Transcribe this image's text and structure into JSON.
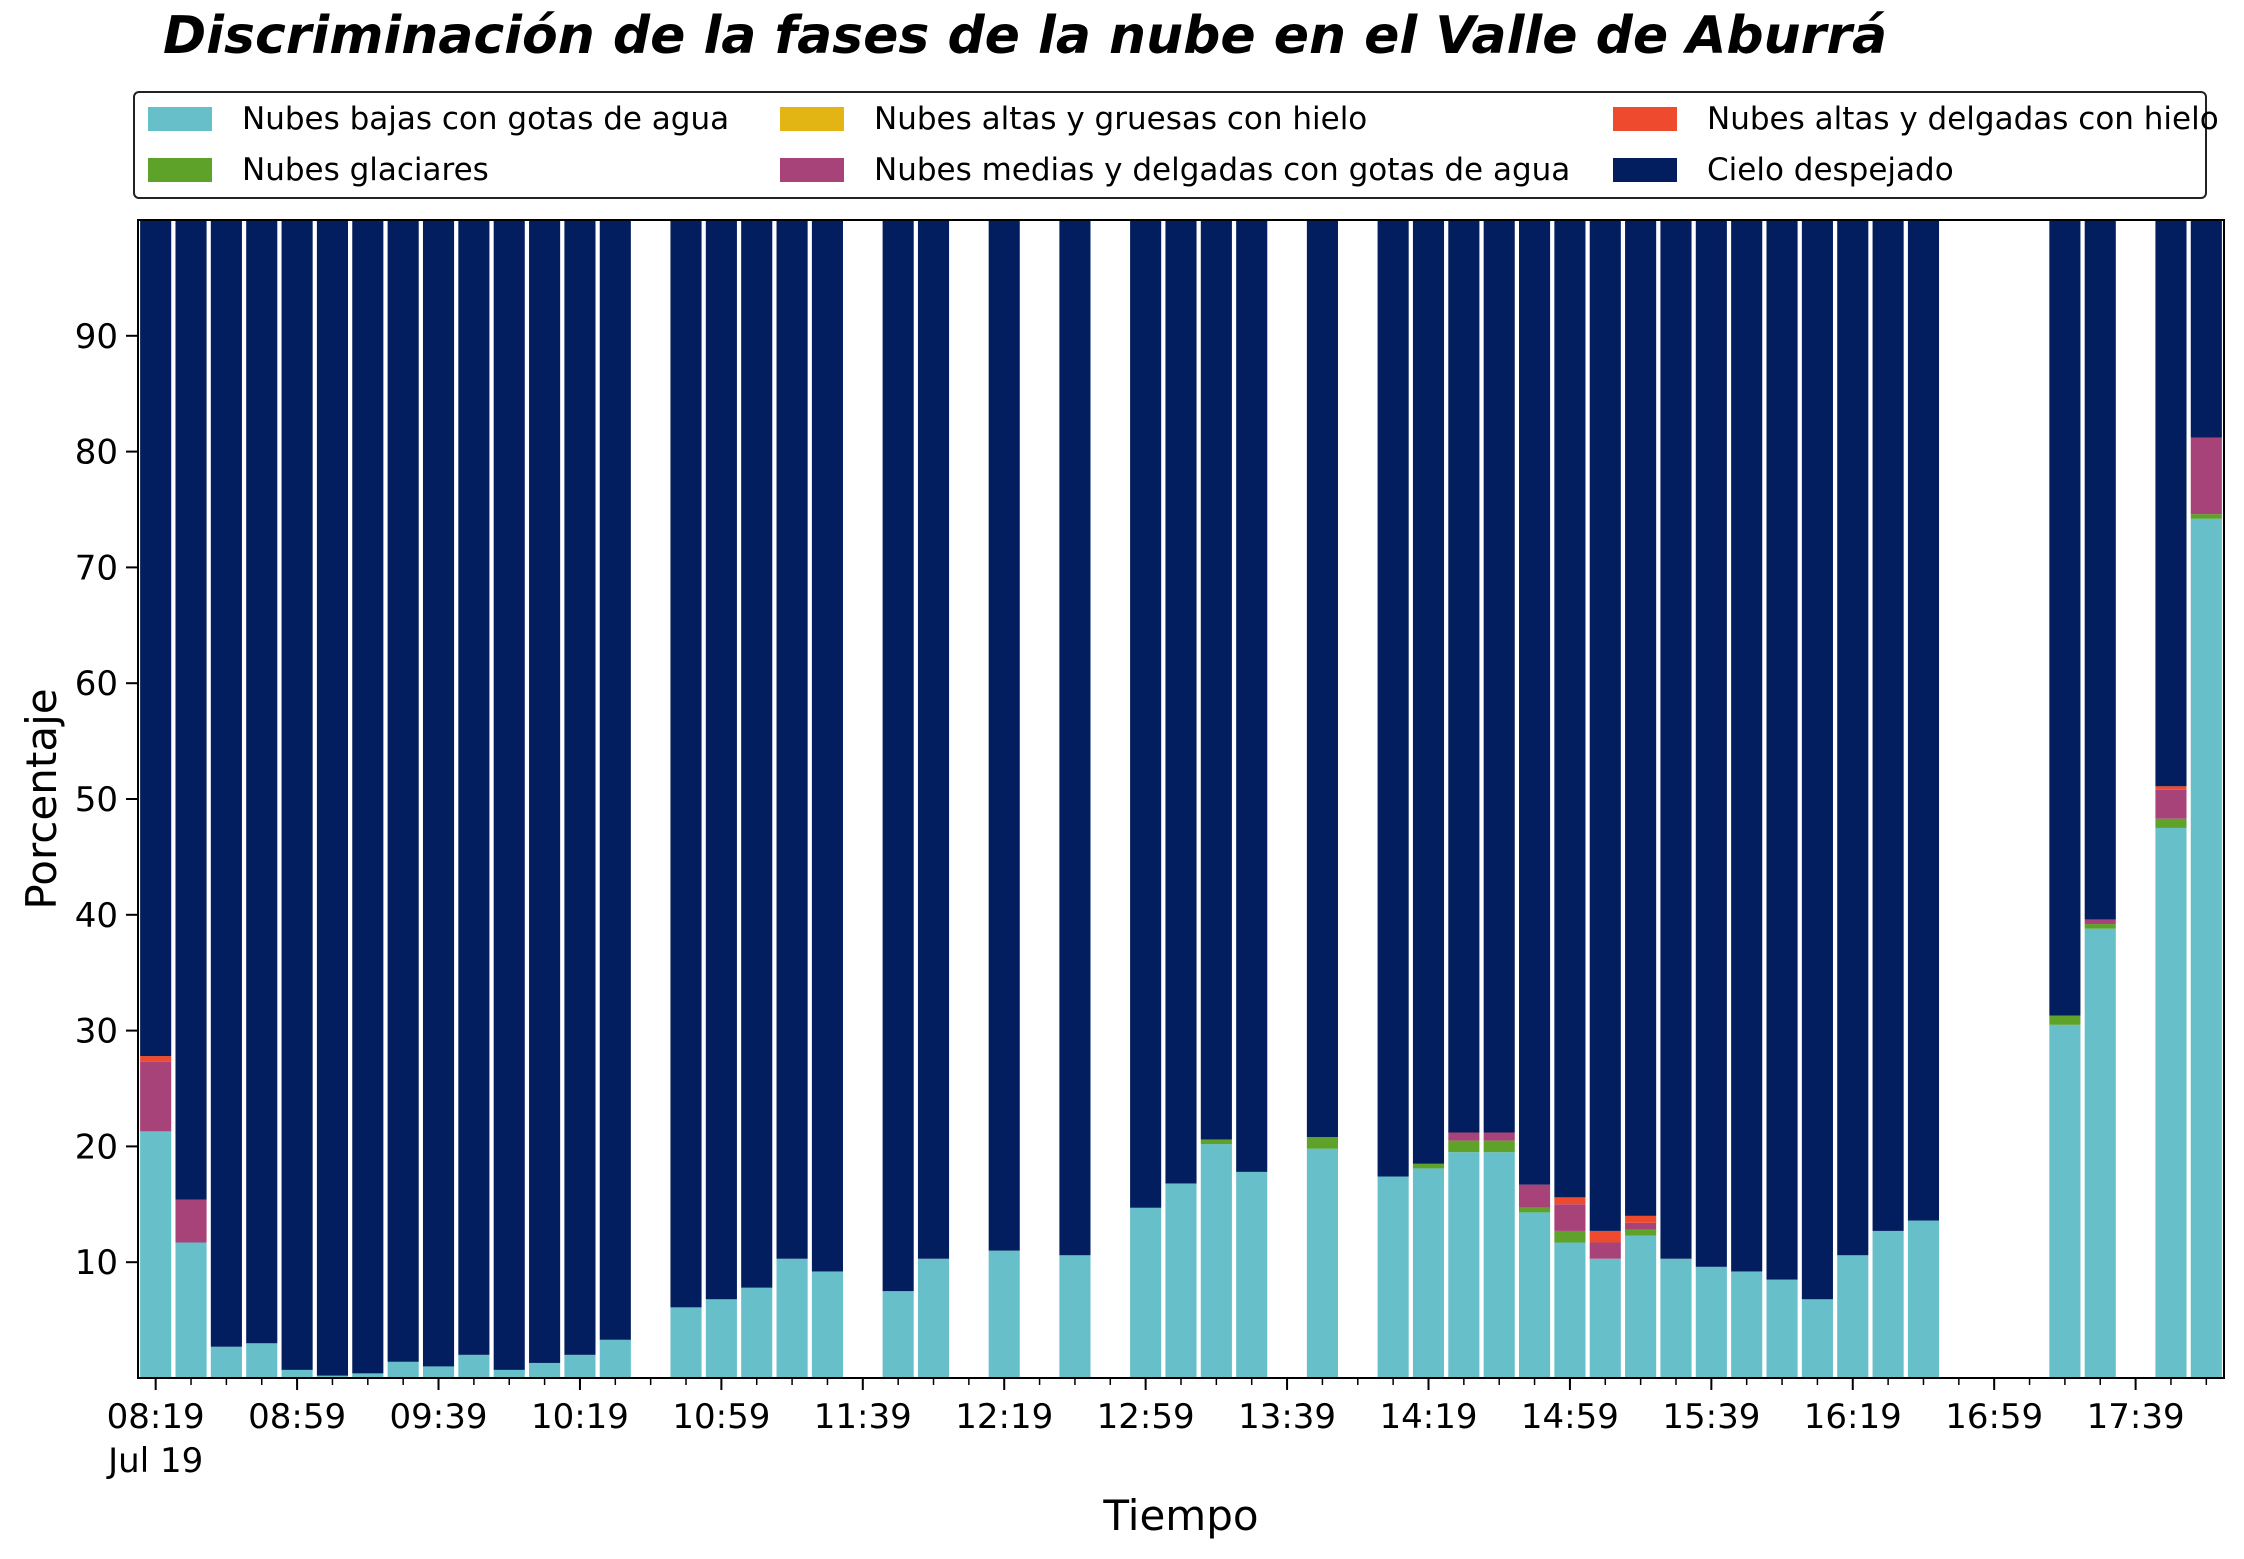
{
  "chart_data": {
    "type": "bar",
    "stacked": true,
    "title": "Discriminación de la fases de la nube en el Valle de Aburrá",
    "xlabel": "Tiempo",
    "ylabel": "Porcentaje",
    "ylim": [
      0,
      100
    ],
    "yticks": [
      10,
      20,
      30,
      40,
      50,
      60,
      70,
      80,
      90
    ],
    "legend_position": "top",
    "legend_columns": 3,
    "grid": false,
    "x_start": "08:19",
    "x_end": "17:59",
    "x_step_minutes": 10,
    "xtick_labels": [
      {
        "time": "08:19",
        "label": "08:19",
        "sublabel": "Jul 19"
      },
      {
        "time": "08:59",
        "label": "08:59"
      },
      {
        "time": "09:39",
        "label": "09:39"
      },
      {
        "time": "10:19",
        "label": "10:19"
      },
      {
        "time": "10:59",
        "label": "10:59"
      },
      {
        "time": "11:39",
        "label": "11:39"
      },
      {
        "time": "12:19",
        "label": "12:19"
      },
      {
        "time": "12:59",
        "label": "12:59"
      },
      {
        "time": "13:39",
        "label": "13:39"
      },
      {
        "time": "14:19",
        "label": "14:19"
      },
      {
        "time": "14:59",
        "label": "14:59"
      },
      {
        "time": "15:39",
        "label": "15:39"
      },
      {
        "time": "16:19",
        "label": "16:19"
      },
      {
        "time": "16:59",
        "label": "16:59"
      },
      {
        "time": "17:39",
        "label": "17:39"
      }
    ],
    "series": [
      {
        "name": "Nubes bajas con gotas de agua",
        "color": "#67bfca"
      },
      {
        "name": "Nubes glaciares",
        "color": "#5ea22a"
      },
      {
        "name": "Nubes altas y gruesas con hielo",
        "color": "#e2b414"
      },
      {
        "name": "Nubes medias y delgadas con gotas de agua",
        "color": "#a8437a"
      },
      {
        "name": "Nubes altas y delgadas con hielo",
        "color": "#ee4a2e"
      },
      {
        "name": "Cielo despejado",
        "color": "#031e5e"
      }
    ],
    "bars": [
      {
        "time": "08:19",
        "values": [
          21.3,
          0,
          0,
          6.0,
          0.5,
          72.2
        ]
      },
      {
        "time": "08:29",
        "values": [
          11.7,
          0,
          0,
          3.7,
          0,
          84.6
        ]
      },
      {
        "time": "08:39",
        "values": [
          2.7,
          0,
          0,
          0,
          0,
          97.3
        ]
      },
      {
        "time": "08:49",
        "values": [
          3.0,
          0,
          0,
          0,
          0,
          97.0
        ]
      },
      {
        "time": "08:59",
        "values": [
          0.7,
          0,
          0,
          0,
          0,
          99.3
        ]
      },
      {
        "time": "09:09",
        "values": [
          0.2,
          0,
          0,
          0,
          0,
          99.8
        ]
      },
      {
        "time": "09:19",
        "values": [
          0.4,
          0,
          0,
          0,
          0,
          99.6
        ]
      },
      {
        "time": "09:29",
        "values": [
          1.4,
          0,
          0,
          0,
          0,
          98.6
        ]
      },
      {
        "time": "09:39",
        "values": [
          1.0,
          0,
          0,
          0,
          0,
          99.0
        ]
      },
      {
        "time": "09:49",
        "values": [
          2.0,
          0,
          0,
          0,
          0,
          98.0
        ]
      },
      {
        "time": "09:59",
        "values": [
          0.7,
          0,
          0,
          0,
          0,
          99.3
        ]
      },
      {
        "time": "10:09",
        "values": [
          1.3,
          0,
          0,
          0,
          0,
          98.7
        ]
      },
      {
        "time": "10:19",
        "values": [
          2.0,
          0,
          0,
          0,
          0,
          98.0
        ]
      },
      {
        "time": "10:29",
        "values": [
          3.3,
          0,
          0,
          0,
          0,
          96.7
        ]
      },
      {
        "time": "10:49",
        "values": [
          6.1,
          0,
          0,
          0,
          0,
          93.9
        ]
      },
      {
        "time": "10:59",
        "values": [
          6.8,
          0,
          0,
          0,
          0,
          93.2
        ]
      },
      {
        "time": "11:09",
        "values": [
          7.8,
          0,
          0,
          0,
          0,
          92.2
        ]
      },
      {
        "time": "11:19",
        "values": [
          10.3,
          0,
          0,
          0,
          0,
          89.7
        ]
      },
      {
        "time": "11:29",
        "values": [
          9.2,
          0,
          0,
          0,
          0,
          90.8
        ]
      },
      {
        "time": "11:49",
        "values": [
          7.5,
          0,
          0,
          0,
          0,
          92.5
        ]
      },
      {
        "time": "11:59",
        "values": [
          10.3,
          0,
          0,
          0,
          0,
          89.7
        ]
      },
      {
        "time": "12:19",
        "values": [
          11.0,
          0,
          0,
          0,
          0,
          89.0
        ]
      },
      {
        "time": "12:39",
        "values": [
          10.6,
          0,
          0,
          0,
          0,
          89.4
        ]
      },
      {
        "time": "12:59",
        "values": [
          14.7,
          0,
          0,
          0,
          0,
          85.3
        ]
      },
      {
        "time": "13:09",
        "values": [
          16.8,
          0,
          0,
          0,
          0,
          83.2
        ]
      },
      {
        "time": "13:19",
        "values": [
          20.2,
          0.4,
          0,
          0,
          0,
          79.4
        ]
      },
      {
        "time": "13:29",
        "values": [
          17.8,
          0,
          0,
          0,
          0,
          82.2
        ]
      },
      {
        "time": "13:49",
        "values": [
          19.8,
          1.0,
          0,
          0,
          0,
          79.2
        ]
      },
      {
        "time": "14:09",
        "values": [
          17.4,
          0,
          0,
          0,
          0,
          82.6
        ]
      },
      {
        "time": "14:19",
        "values": [
          18.1,
          0.4,
          0,
          0,
          0,
          81.5
        ]
      },
      {
        "time": "14:29",
        "values": [
          19.5,
          1.0,
          0,
          0.7,
          0,
          78.8
        ]
      },
      {
        "time": "14:39",
        "values": [
          19.5,
          1.0,
          0,
          0.7,
          0,
          78.8
        ]
      },
      {
        "time": "14:49",
        "values": [
          14.3,
          0.4,
          0,
          2.0,
          0,
          83.3
        ]
      },
      {
        "time": "14:59",
        "values": [
          11.7,
          1.0,
          0,
          2.3,
          0.6,
          84.4
        ]
      },
      {
        "time": "15:09",
        "values": [
          10.3,
          0,
          0,
          1.4,
          1.0,
          87.3
        ]
      },
      {
        "time": "15:19",
        "values": [
          12.3,
          0.5,
          0,
          0.6,
          0.6,
          86.0
        ]
      },
      {
        "time": "15:29",
        "values": [
          10.3,
          0,
          0,
          0,
          0,
          89.7
        ]
      },
      {
        "time": "15:39",
        "values": [
          9.6,
          0,
          0,
          0,
          0,
          90.4
        ]
      },
      {
        "time": "15:49",
        "values": [
          9.2,
          0,
          0,
          0,
          0,
          90.8
        ]
      },
      {
        "time": "15:59",
        "values": [
          8.5,
          0,
          0,
          0,
          0,
          91.5
        ]
      },
      {
        "time": "16:09",
        "values": [
          6.8,
          0,
          0,
          0,
          0,
          93.2
        ]
      },
      {
        "time": "16:19",
        "values": [
          10.6,
          0,
          0,
          0,
          0,
          89.4
        ]
      },
      {
        "time": "16:29",
        "values": [
          12.7,
          0,
          0,
          0,
          0,
          87.3
        ]
      },
      {
        "time": "16:39",
        "values": [
          13.6,
          0,
          0,
          0,
          0,
          86.4
        ]
      },
      {
        "time": "17:19",
        "values": [
          30.5,
          0.8,
          0,
          0,
          0,
          68.7
        ]
      },
      {
        "time": "17:29",
        "values": [
          38.8,
          0.4,
          0,
          0.4,
          0,
          60.4
        ]
      },
      {
        "time": "17:49",
        "values": [
          47.5,
          0.8,
          0,
          2.5,
          0.3,
          48.9
        ]
      },
      {
        "time": "17:59",
        "values": [
          74.2,
          0.4,
          0,
          6.6,
          0,
          18.8
        ]
      }
    ]
  }
}
